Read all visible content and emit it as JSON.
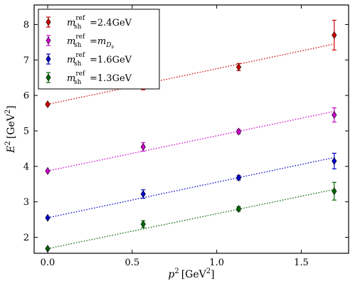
{
  "chart_data": {
    "type": "scatter",
    "xlabel_main": "p",
    "xlabel_sup": "2",
    "xlabel_unit": "[GeV",
    "xlabel_unit_sup": "2",
    "xlabel_close": "]",
    "ylabel_main": "E",
    "ylabel_sup": "2",
    "ylabel_unit": "[GeV",
    "ylabel_unit_sup": "2",
    "ylabel_close": "]",
    "xlim": [
      -0.08,
      1.78
    ],
    "ylim": [
      1.55,
      8.55
    ],
    "xticks": [
      0.0,
      0.5,
      1.0,
      1.5
    ],
    "xtick_labels": [
      "0.0",
      "0.5",
      "1.0",
      "1.5"
    ],
    "yticks": [
      2,
      3,
      4,
      5,
      6,
      7,
      8
    ],
    "ytick_labels": [
      "2",
      "3",
      "4",
      "5",
      "6",
      "7",
      "8"
    ],
    "legend_placement": "top-left",
    "grid": false,
    "series": [
      {
        "key": "2.4GeV",
        "color": "#cc0000",
        "legend": {
          "var": "m",
          "sub": "sh",
          "sup": "ref",
          "eq": "=",
          "value": "2.4GeV",
          "value_sub": ""
        },
        "x": [
          0.0,
          0.565,
          1.13,
          1.695
        ],
        "y": [
          5.75,
          6.38,
          6.8,
          7.7
        ],
        "err": [
          0.03,
          0.22,
          0.1,
          0.42
        ],
        "fit": {
          "x0": 0.0,
          "y0": 5.75,
          "x1": 1.695,
          "y1": 7.45
        }
      },
      {
        "key": "mDs",
        "color": "#cc00cc",
        "legend": {
          "var": "m",
          "sub": "sh",
          "sup": "ref",
          "eq": "=",
          "value": "m",
          "value_sub": "D",
          "value_subsub": "s"
        },
        "x": [
          0.0,
          0.565,
          1.13,
          1.695
        ],
        "y": [
          3.87,
          4.55,
          4.98,
          5.45
        ],
        "err": [
          0.02,
          0.12,
          0.06,
          0.2
        ],
        "fit": {
          "x0": 0.0,
          "y0": 3.87,
          "x1": 1.695,
          "y1": 5.55
        }
      },
      {
        "key": "1.6GeV",
        "color": "#0000cc",
        "legend": {
          "var": "m",
          "sub": "sh",
          "sup": "ref",
          "eq": "=",
          "value": "1.6GeV",
          "value_sub": ""
        },
        "x": [
          0.0,
          0.565,
          1.13,
          1.695
        ],
        "y": [
          2.55,
          3.22,
          3.68,
          4.15
        ],
        "err": [
          0.02,
          0.12,
          0.06,
          0.22
        ],
        "fit": {
          "x0": 0.0,
          "y0": 2.55,
          "x1": 1.695,
          "y1": 4.25
        }
      },
      {
        "key": "1.3GeV",
        "color": "#006600",
        "legend": {
          "var": "m",
          "sub": "sh",
          "sup": "ref",
          "eq": "=",
          "value": "1.3GeV",
          "value_sub": ""
        },
        "x": [
          0.0,
          0.565,
          1.13,
          1.695
        ],
        "y": [
          1.68,
          2.37,
          2.8,
          3.3
        ],
        "err": [
          0.02,
          0.1,
          0.06,
          0.25
        ],
        "fit": {
          "x0": 0.0,
          "y0": 1.68,
          "x1": 1.695,
          "y1": 3.35
        }
      }
    ]
  }
}
